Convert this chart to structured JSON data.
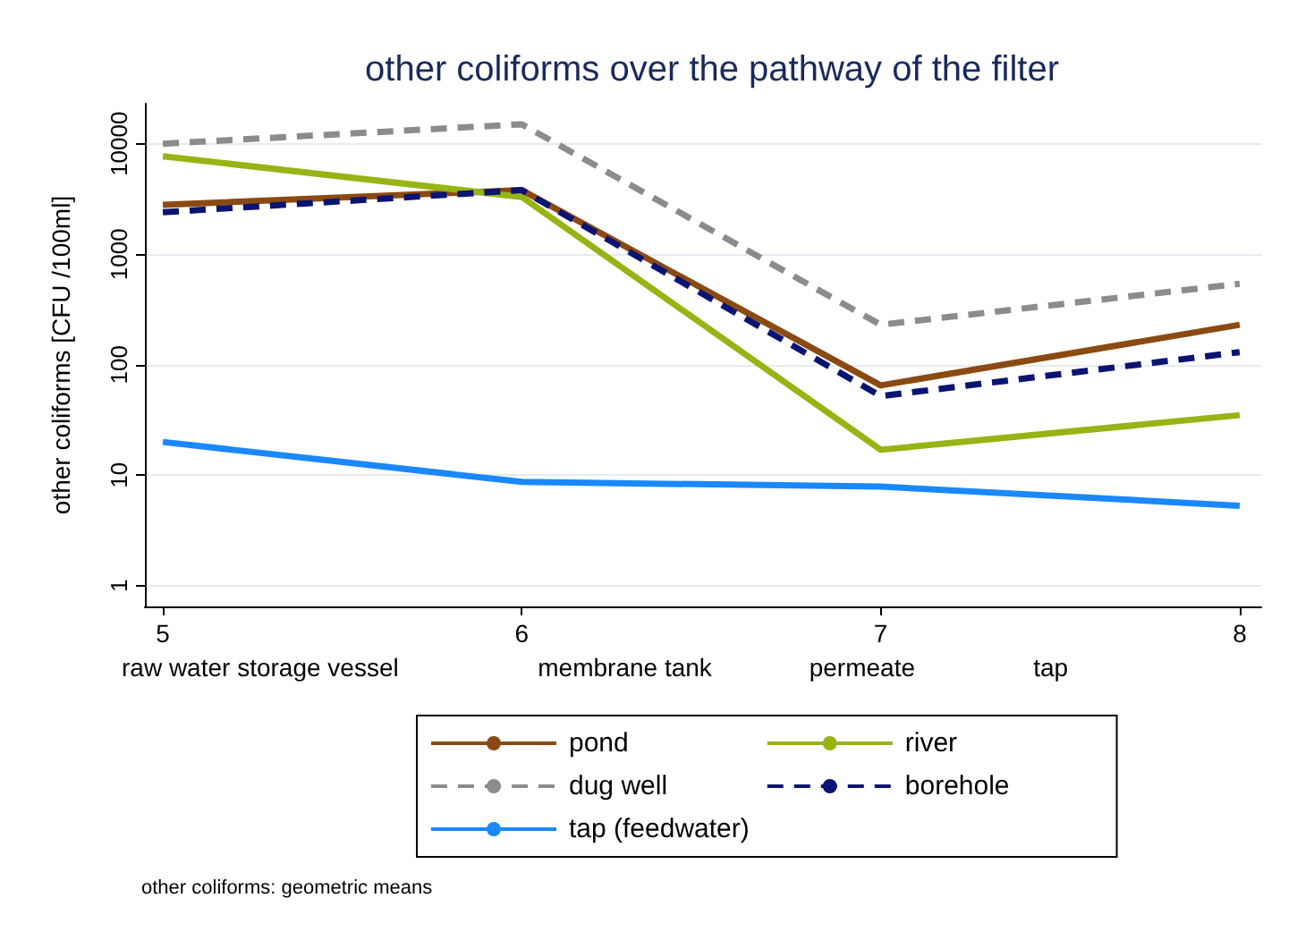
{
  "chart_data": {
    "type": "line",
    "title": "other coliforms over the pathway of the filter",
    "xlabel": "raw water storage vessel                    membrane tank              permeate                 tap",
    "ylabel": "other coliforms [CFU /100ml]",
    "x": [
      5,
      6,
      7,
      8
    ],
    "xlim": [
      4.95,
      8.06
    ],
    "xticks": [
      5,
      6,
      7,
      8
    ],
    "log": true,
    "ylim": [
      0.65,
      23000
    ],
    "yticks": [
      1,
      10,
      100,
      1000,
      10000
    ],
    "grid": "y",
    "legend": "bottom",
    "marker": "none",
    "series": [
      {
        "name": "pond",
        "color": "#8b4a12",
        "line_style": "solid",
        "values": [
          2800,
          3800,
          65,
          230
        ]
      },
      {
        "name": "river",
        "color": "#96b414",
        "line_style": "solid",
        "values": [
          7700,
          3300,
          17,
          35
        ]
      },
      {
        "name": "dug well",
        "color": "#8c8c8c",
        "line_style": "dashed",
        "values": [
          10000,
          15000,
          230,
          540
        ]
      },
      {
        "name": "borehole",
        "color": "#0b1470",
        "line_style": "dashed",
        "values": [
          2400,
          3800,
          52,
          130
        ]
      },
      {
        "name": "tap (feedwater)",
        "color": "#1a88ff",
        "line_style": "solid",
        "values": [
          20,
          8.7,
          7.9,
          5.3
        ]
      }
    ],
    "annotations": [
      "other coliforms: geometric means"
    ]
  }
}
